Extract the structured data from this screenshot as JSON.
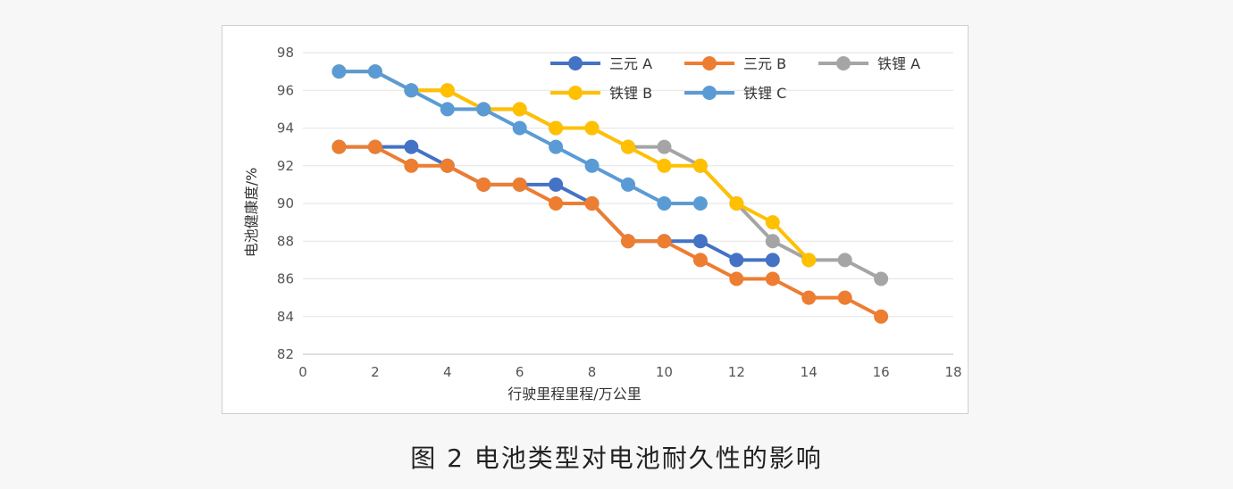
{
  "caption": "图 2 电池类型对电池耐久性的影响",
  "chart_data": {
    "type": "line",
    "title": "",
    "xlabel": "行驶里程里程/万公里",
    "ylabel": "电池健康度/%",
    "xlim": [
      0,
      18
    ],
    "ylim": [
      82,
      98
    ],
    "xticks": [
      0,
      2,
      4,
      6,
      8,
      10,
      12,
      14,
      16,
      18
    ],
    "yticks": [
      82,
      84,
      86,
      88,
      90,
      92,
      94,
      96,
      98
    ],
    "grid": "horizontal",
    "legend_position": "top-right",
    "series": [
      {
        "name": "三元 A",
        "color": "#4472c4",
        "x": [
          1,
          2,
          3,
          4,
          5,
          6,
          7,
          8,
          9,
          10,
          11,
          12,
          13
        ],
        "y": [
          93,
          93,
          93,
          92,
          91,
          91,
          91,
          90,
          88,
          88,
          88,
          87,
          87
        ]
      },
      {
        "name": "铁锂 A",
        "color": "#a5a5a5",
        "x": [
          1,
          2,
          3,
          4,
          5,
          6,
          7,
          8,
          9,
          10,
          11,
          12,
          13,
          14,
          15,
          16
        ],
        "y": [
          97,
          97,
          96,
          96,
          95,
          95,
          94,
          94,
          93,
          93,
          92,
          90,
          88,
          87,
          87,
          86
        ]
      },
      {
        "name": "铁锂 B",
        "color": "#ffc000",
        "x": [
          1,
          2,
          3,
          4,
          5,
          6,
          7,
          8,
          9,
          10,
          11,
          12,
          13,
          14
        ],
        "y": [
          97,
          97,
          96,
          96,
          95,
          95,
          94,
          94,
          93,
          92,
          92,
          90,
          89,
          87
        ]
      },
      {
        "name": "铁锂 C",
        "color": "#5b9bd5",
        "x": [
          1,
          2,
          3,
          4,
          5,
          6,
          7,
          8,
          9,
          10,
          11
        ],
        "y": [
          97,
          97,
          96,
          95,
          95,
          94,
          93,
          92,
          91,
          90,
          90
        ]
      },
      {
        "name": "三元 B",
        "color": "#ed7d31",
        "x": [
          1,
          2,
          3,
          4,
          5,
          6,
          7,
          8,
          9,
          10,
          11,
          12,
          13,
          14,
          15,
          16
        ],
        "y": [
          93,
          93,
          92,
          92,
          91,
          91,
          90,
          90,
          88,
          88,
          87,
          86,
          86,
          85,
          85,
          84
        ]
      }
    ],
    "legend_order": [
      "三元 A",
      "三元 B",
      "铁锂 A",
      "铁锂 B",
      "铁锂 C"
    ]
  }
}
